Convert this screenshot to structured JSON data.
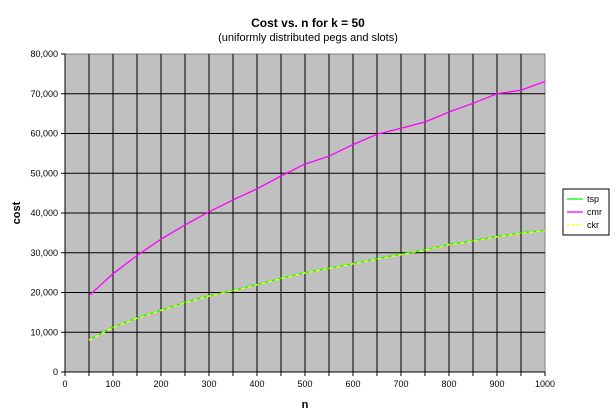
{
  "chart_data": {
    "type": "line",
    "title": "Cost vs. n for k = 50",
    "subtitle": "(uniformly distributed pegs and slots)",
    "xlabel": "n",
    "ylabel": "cost",
    "xlim": [
      0,
      1000
    ],
    "ylim": [
      0,
      80000
    ],
    "x_ticks": [
      "0",
      "100",
      "200",
      "300",
      "400",
      "500",
      "600",
      "700",
      "800",
      "900",
      "1000"
    ],
    "y_ticks": [
      "0",
      "10,000",
      "20,000",
      "30,000",
      "40,000",
      "50,000",
      "60,000",
      "70,000",
      "80,000"
    ],
    "grid": true,
    "plot_background": "#c0c0c0",
    "legend_position": "right",
    "x": [
      50,
      100,
      150,
      200,
      250,
      300,
      350,
      400,
      450,
      500,
      550,
      600,
      650,
      700,
      750,
      800,
      850,
      900,
      950,
      1000
    ],
    "series": [
      {
        "name": "tsp",
        "color": "#00ff00",
        "values": [
          8100,
          11300,
          13600,
          15600,
          17500,
          19200,
          20500,
          22000,
          23600,
          25000,
          26100,
          27300,
          28500,
          29600,
          30800,
          32100,
          33000,
          34100,
          35000,
          35700
        ]
      },
      {
        "name": "cmr",
        "color": "#ff00ff",
        "values": [
          19200,
          24700,
          29300,
          33400,
          37000,
          40300,
          43300,
          46100,
          49300,
          52300,
          54300,
          57200,
          59800,
          61300,
          62900,
          65400,
          67600,
          70000,
          70900,
          73100
        ]
      },
      {
        "name": "ckr",
        "color": "#ffff00",
        "values": [
          8000,
          11200,
          13500,
          15500,
          17400,
          19100,
          20400,
          21900,
          23500,
          24900,
          26000,
          27200,
          28400,
          29500,
          30700,
          32000,
          32900,
          34000,
          34900,
          35600
        ]
      }
    ]
  }
}
